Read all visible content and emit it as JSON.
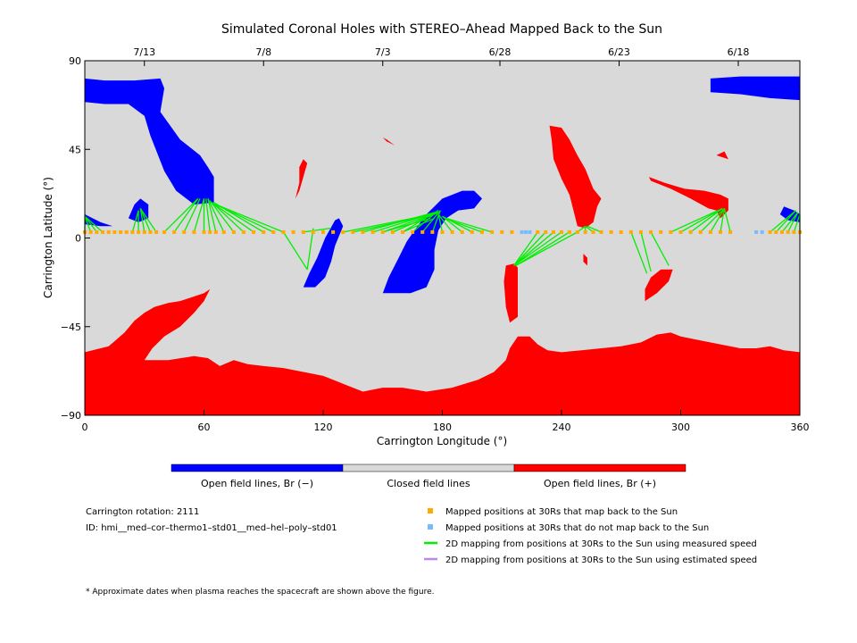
{
  "chart_data": {
    "type": "heatmap",
    "title": "Simulated Coronal Holes with STEREO–Ahead Mapped Back to the Sun",
    "xlabel": "Carrington Longitude (°)",
    "ylabel": "Carrington Latitude (°)",
    "xlim": [
      0,
      360
    ],
    "ylim": [
      -90,
      90
    ],
    "x_ticks": [
      0,
      60,
      120,
      180,
      240,
      300,
      360
    ],
    "y_ticks": [
      90,
      45,
      0,
      -45,
      -90
    ],
    "top_axis": {
      "ticks": [
        {
          "label": "7/13",
          "lon": 30
        },
        {
          "label": "7/8",
          "lon": 90
        },
        {
          "label": "7/3",
          "lon": 150
        },
        {
          "label": "6/28",
          "lon": 209
        },
        {
          "label": "6/23",
          "lon": 269
        },
        {
          "label": "6/18",
          "lon": 329
        }
      ]
    },
    "colors": {
      "open_negative": "#0000ff",
      "closed": "#d9d9d9",
      "open_positive": "#ff0000",
      "mapped_back": "#ffaa00",
      "not_mapped": "#77bbff",
      "measured_speed": "#00ee00",
      "estimated_speed": "#bb88ee"
    },
    "regions": [
      {
        "polarity": "negative",
        "points": [
          [
            0,
            81
          ],
          [
            10,
            80
          ],
          [
            25,
            80
          ],
          [
            38,
            81
          ],
          [
            40,
            76
          ],
          [
            38,
            64
          ],
          [
            48,
            50
          ],
          [
            58,
            42
          ],
          [
            62,
            36
          ],
          [
            65,
            31
          ],
          [
            65,
            18
          ],
          [
            55,
            17
          ],
          [
            46,
            24
          ],
          [
            40,
            34
          ],
          [
            33,
            52
          ],
          [
            30,
            62
          ],
          [
            22,
            68
          ],
          [
            10,
            68
          ],
          [
            0,
            69
          ]
        ]
      },
      {
        "polarity": "negative",
        "points": [
          [
            315,
            81
          ],
          [
            330,
            82
          ],
          [
            345,
            82
          ],
          [
            360,
            82
          ],
          [
            360,
            70
          ],
          [
            345,
            71
          ],
          [
            330,
            73
          ],
          [
            315,
            74
          ]
        ]
      },
      {
        "polarity": "negative",
        "points": [
          [
            22,
            10
          ],
          [
            25,
            17
          ],
          [
            28,
            20
          ],
          [
            32,
            17
          ],
          [
            32,
            10
          ],
          [
            27,
            8
          ]
        ]
      },
      {
        "polarity": "negative",
        "points": [
          [
            0,
            12
          ],
          [
            8,
            8
          ],
          [
            14,
            6
          ],
          [
            8,
            6
          ],
          [
            0,
            7
          ]
        ]
      },
      {
        "polarity": "negative",
        "points": [
          [
            352,
            16
          ],
          [
            357,
            14
          ],
          [
            360,
            12
          ],
          [
            360,
            8
          ],
          [
            354,
            9
          ],
          [
            350,
            12
          ]
        ]
      },
      {
        "polarity": "negative",
        "points": [
          [
            110,
            -25
          ],
          [
            113,
            -18
          ],
          [
            117,
            -10
          ],
          [
            121,
            0
          ],
          [
            126,
            9
          ],
          [
            128,
            10
          ],
          [
            130,
            6
          ],
          [
            126,
            -4
          ],
          [
            124,
            -12
          ],
          [
            121,
            -20
          ],
          [
            116,
            -25
          ]
        ]
      },
      {
        "polarity": "negative",
        "points": [
          [
            150,
            -28
          ],
          [
            153,
            -20
          ],
          [
            158,
            -10
          ],
          [
            162,
            -2
          ],
          [
            166,
            4
          ],
          [
            172,
            12
          ],
          [
            180,
            20
          ],
          [
            190,
            24
          ],
          [
            196,
            24
          ],
          [
            200,
            20
          ],
          [
            196,
            15
          ],
          [
            188,
            14
          ],
          [
            182,
            10
          ],
          [
            178,
            4
          ],
          [
            176,
            -6
          ],
          [
            176,
            -16
          ],
          [
            172,
            -25
          ],
          [
            164,
            -28
          ]
        ]
      },
      {
        "polarity": "positive",
        "points": [
          [
            0,
            -58
          ],
          [
            12,
            -55
          ],
          [
            20,
            -48
          ],
          [
            25,
            -42
          ],
          [
            30,
            -38
          ],
          [
            35,
            -35
          ],
          [
            42,
            -33
          ],
          [
            48,
            -32
          ],
          [
            54,
            -30
          ],
          [
            60,
            -28
          ],
          [
            63,
            -26
          ],
          [
            60,
            -32
          ],
          [
            55,
            -38
          ],
          [
            48,
            -45
          ],
          [
            40,
            -50
          ],
          [
            34,
            -56
          ],
          [
            30,
            -62
          ],
          [
            42,
            -62
          ],
          [
            55,
            -60
          ],
          [
            62,
            -61
          ],
          [
            68,
            -65
          ],
          [
            75,
            -62
          ],
          [
            82,
            -64
          ],
          [
            90,
            -65
          ],
          [
            100,
            -66
          ],
          [
            110,
            -68
          ],
          [
            120,
            -70
          ],
          [
            130,
            -74
          ],
          [
            140,
            -78
          ],
          [
            150,
            -76
          ],
          [
            160,
            -76
          ],
          [
            172,
            -78
          ],
          [
            185,
            -76
          ],
          [
            198,
            -72
          ],
          [
            206,
            -68
          ],
          [
            212,
            -62
          ],
          [
            214,
            -56
          ],
          [
            218,
            -50
          ],
          [
            224,
            -50
          ],
          [
            228,
            -54
          ],
          [
            233,
            -57
          ],
          [
            240,
            -58
          ],
          [
            250,
            -57
          ],
          [
            260,
            -56
          ],
          [
            270,
            -55
          ],
          [
            280,
            -53
          ],
          [
            288,
            -49
          ],
          [
            295,
            -48
          ],
          [
            300,
            -50
          ],
          [
            310,
            -52
          ],
          [
            320,
            -54
          ],
          [
            330,
            -56
          ],
          [
            338,
            -56
          ],
          [
            345,
            -55
          ],
          [
            352,
            -57
          ],
          [
            360,
            -58
          ],
          [
            360,
            -90
          ],
          [
            0,
            -90
          ]
        ]
      },
      {
        "polarity": "positive",
        "points": [
          [
            234,
            57
          ],
          [
            240,
            56
          ],
          [
            244,
            50
          ],
          [
            248,
            42
          ],
          [
            252,
            35
          ],
          [
            256,
            25
          ],
          [
            260,
            20
          ],
          [
            258,
            16
          ],
          [
            256,
            8
          ],
          [
            252,
            5
          ],
          [
            248,
            6
          ],
          [
            246,
            14
          ],
          [
            244,
            22
          ],
          [
            240,
            30
          ],
          [
            236,
            40
          ],
          [
            235,
            50
          ]
        ]
      },
      {
        "polarity": "positive",
        "points": [
          [
            212,
            -14
          ],
          [
            216,
            -13
          ],
          [
            218,
            -15
          ],
          [
            218,
            -40
          ],
          [
            214,
            -43
          ],
          [
            212,
            -35
          ],
          [
            211,
            -22
          ]
        ]
      },
      {
        "polarity": "positive",
        "points": [
          [
            282,
            -32
          ],
          [
            288,
            -28
          ],
          [
            294,
            -22
          ],
          [
            296,
            -16
          ],
          [
            290,
            -16
          ],
          [
            285,
            -20
          ],
          [
            282,
            -26
          ]
        ]
      },
      {
        "polarity": "positive",
        "points": [
          [
            284,
            31
          ],
          [
            292,
            28
          ],
          [
            302,
            25
          ],
          [
            312,
            24
          ],
          [
            320,
            22
          ],
          [
            324,
            20
          ],
          [
            324,
            14
          ],
          [
            320,
            10
          ],
          [
            318,
            14
          ],
          [
            314,
            15
          ],
          [
            305,
            20
          ],
          [
            295,
            25
          ],
          [
            285,
            29
          ]
        ]
      },
      {
        "polarity": "positive",
        "points": [
          [
            110,
            40
          ],
          [
            112,
            38
          ],
          [
            110,
            31
          ],
          [
            108,
            24
          ],
          [
            106,
            20
          ],
          [
            108,
            28
          ],
          [
            108,
            36
          ]
        ]
      },
      {
        "polarity": "positive",
        "points": [
          [
            150,
            51
          ],
          [
            152,
            50
          ],
          [
            156,
            47
          ],
          [
            152,
            49
          ]
        ]
      },
      {
        "polarity": "positive",
        "points": [
          [
            251,
            -8
          ],
          [
            253,
            -10
          ],
          [
            253,
            -14
          ],
          [
            251,
            -12
          ]
        ]
      },
      {
        "polarity": "positive",
        "points": [
          [
            318,
            42
          ],
          [
            324,
            40
          ],
          [
            322,
            44
          ]
        ]
      }
    ],
    "mapped_points": [
      0,
      3,
      6,
      9,
      12,
      15,
      18,
      21,
      24,
      27,
      30,
      33,
      36,
      40,
      45,
      50,
      55,
      60,
      63,
      66,
      70,
      75,
      80,
      85,
      90,
      95,
      100,
      105,
      110,
      115,
      120,
      125,
      130,
      135,
      140,
      145,
      150,
      155,
      160,
      165,
      170,
      175,
      180,
      185,
      190,
      195,
      200,
      205,
      210,
      215,
      228,
      232,
      236,
      240,
      244,
      248,
      252,
      256,
      260,
      265,
      270,
      275,
      280,
      285,
      290,
      295,
      300,
      305,
      310,
      315,
      320,
      325,
      345,
      348,
      351,
      354,
      357,
      360
    ],
    "not_mapped_points": [
      220,
      222,
      224,
      338,
      341
    ],
    "mapped_lat": 6,
    "measured_lines": [
      [
        0,
        3,
        0,
        11
      ],
      [
        3,
        3,
        0,
        11
      ],
      [
        6,
        3,
        0,
        11
      ],
      [
        9,
        3,
        0,
        11
      ],
      [
        24,
        3,
        27,
        14
      ],
      [
        27,
        3,
        27,
        14
      ],
      [
        30,
        3,
        28,
        15
      ],
      [
        33,
        3,
        28,
        15
      ],
      [
        36,
        3,
        28,
        15
      ],
      [
        40,
        3,
        57,
        20
      ],
      [
        45,
        3,
        57,
        20
      ],
      [
        50,
        3,
        58,
        20
      ],
      [
        55,
        3,
        60,
        20
      ],
      [
        60,
        3,
        60,
        20
      ],
      [
        63,
        3,
        61,
        20
      ],
      [
        66,
        3,
        62,
        20
      ],
      [
        70,
        3,
        62,
        20
      ],
      [
        75,
        3,
        63,
        19
      ],
      [
        80,
        3,
        64,
        18
      ],
      [
        85,
        3,
        64,
        18
      ],
      [
        90,
        3,
        65,
        18
      ],
      [
        95,
        3,
        66,
        17
      ],
      [
        100,
        3,
        66,
        17
      ],
      [
        100,
        3,
        112,
        -16
      ],
      [
        112,
        -16,
        115,
        5
      ],
      [
        110,
        3,
        124,
        5
      ],
      [
        130,
        3,
        175,
        12
      ],
      [
        135,
        3,
        176,
        12
      ],
      [
        140,
        3,
        176,
        13
      ],
      [
        145,
        3,
        177,
        13
      ],
      [
        150,
        3,
        178,
        13
      ],
      [
        155,
        3,
        178,
        13
      ],
      [
        160,
        3,
        178,
        14
      ],
      [
        165,
        3,
        178,
        14
      ],
      [
        170,
        3,
        179,
        14
      ],
      [
        175,
        3,
        179,
        14
      ],
      [
        180,
        3,
        178,
        12
      ],
      [
        185,
        3,
        178,
        12
      ],
      [
        190,
        3,
        180,
        11
      ],
      [
        195,
        3,
        180,
        11
      ],
      [
        200,
        3,
        181,
        10
      ],
      [
        205,
        3,
        182,
        10
      ],
      [
        150,
        3,
        174,
        10
      ],
      [
        160,
        3,
        176,
        10
      ],
      [
        228,
        3,
        216,
        -14
      ],
      [
        232,
        3,
        216,
        -14
      ],
      [
        236,
        3,
        216,
        -14
      ],
      [
        240,
        3,
        216,
        -14
      ],
      [
        244,
        3,
        217,
        -14
      ],
      [
        248,
        3,
        217,
        -14
      ],
      [
        248,
        3,
        252,
        6
      ],
      [
        252,
        3,
        252,
        6
      ],
      [
        256,
        3,
        252,
        6
      ],
      [
        260,
        3,
        253,
        6
      ],
      [
        275,
        3,
        283,
        -18
      ],
      [
        280,
        3,
        285,
        -17
      ],
      [
        285,
        3,
        294,
        -14
      ],
      [
        295,
        3,
        321,
        15
      ],
      [
        300,
        3,
        321,
        15
      ],
      [
        305,
        3,
        321,
        15
      ],
      [
        310,
        3,
        322,
        15
      ],
      [
        315,
        3,
        322,
        15
      ],
      [
        320,
        3,
        322,
        15
      ],
      [
        325,
        3,
        322,
        15
      ],
      [
        345,
        3,
        358,
        14
      ],
      [
        348,
        3,
        358,
        14
      ],
      [
        351,
        3,
        359,
        13
      ],
      [
        354,
        3,
        359,
        13
      ],
      [
        357,
        3,
        360,
        12
      ],
      [
        360,
        3,
        360,
        12
      ]
    ]
  },
  "colorbar": {
    "labels": {
      "negative": "Open field lines, Br (−)",
      "closed": "Closed field lines",
      "positive": "Open field lines, Br (+)"
    }
  },
  "info": {
    "rotation": "Carrington rotation: 2111",
    "id": "ID: hmi__med–cor–thermo1–std01__med–hel–poly–std01"
  },
  "legend": {
    "mapped_back": "Mapped positions at 30Rs that map back to the Sun",
    "not_mapped": "Mapped positions at 30Rs that do not map back to the Sun",
    "measured": "2D mapping from positions at 30Rs to the Sun using measured speed",
    "estimated": "2D mapping from positions at 30Rs to the Sun using estimated speed"
  },
  "footnote": "* Approximate dates when plasma reaches the spacecraft are shown above the figure."
}
